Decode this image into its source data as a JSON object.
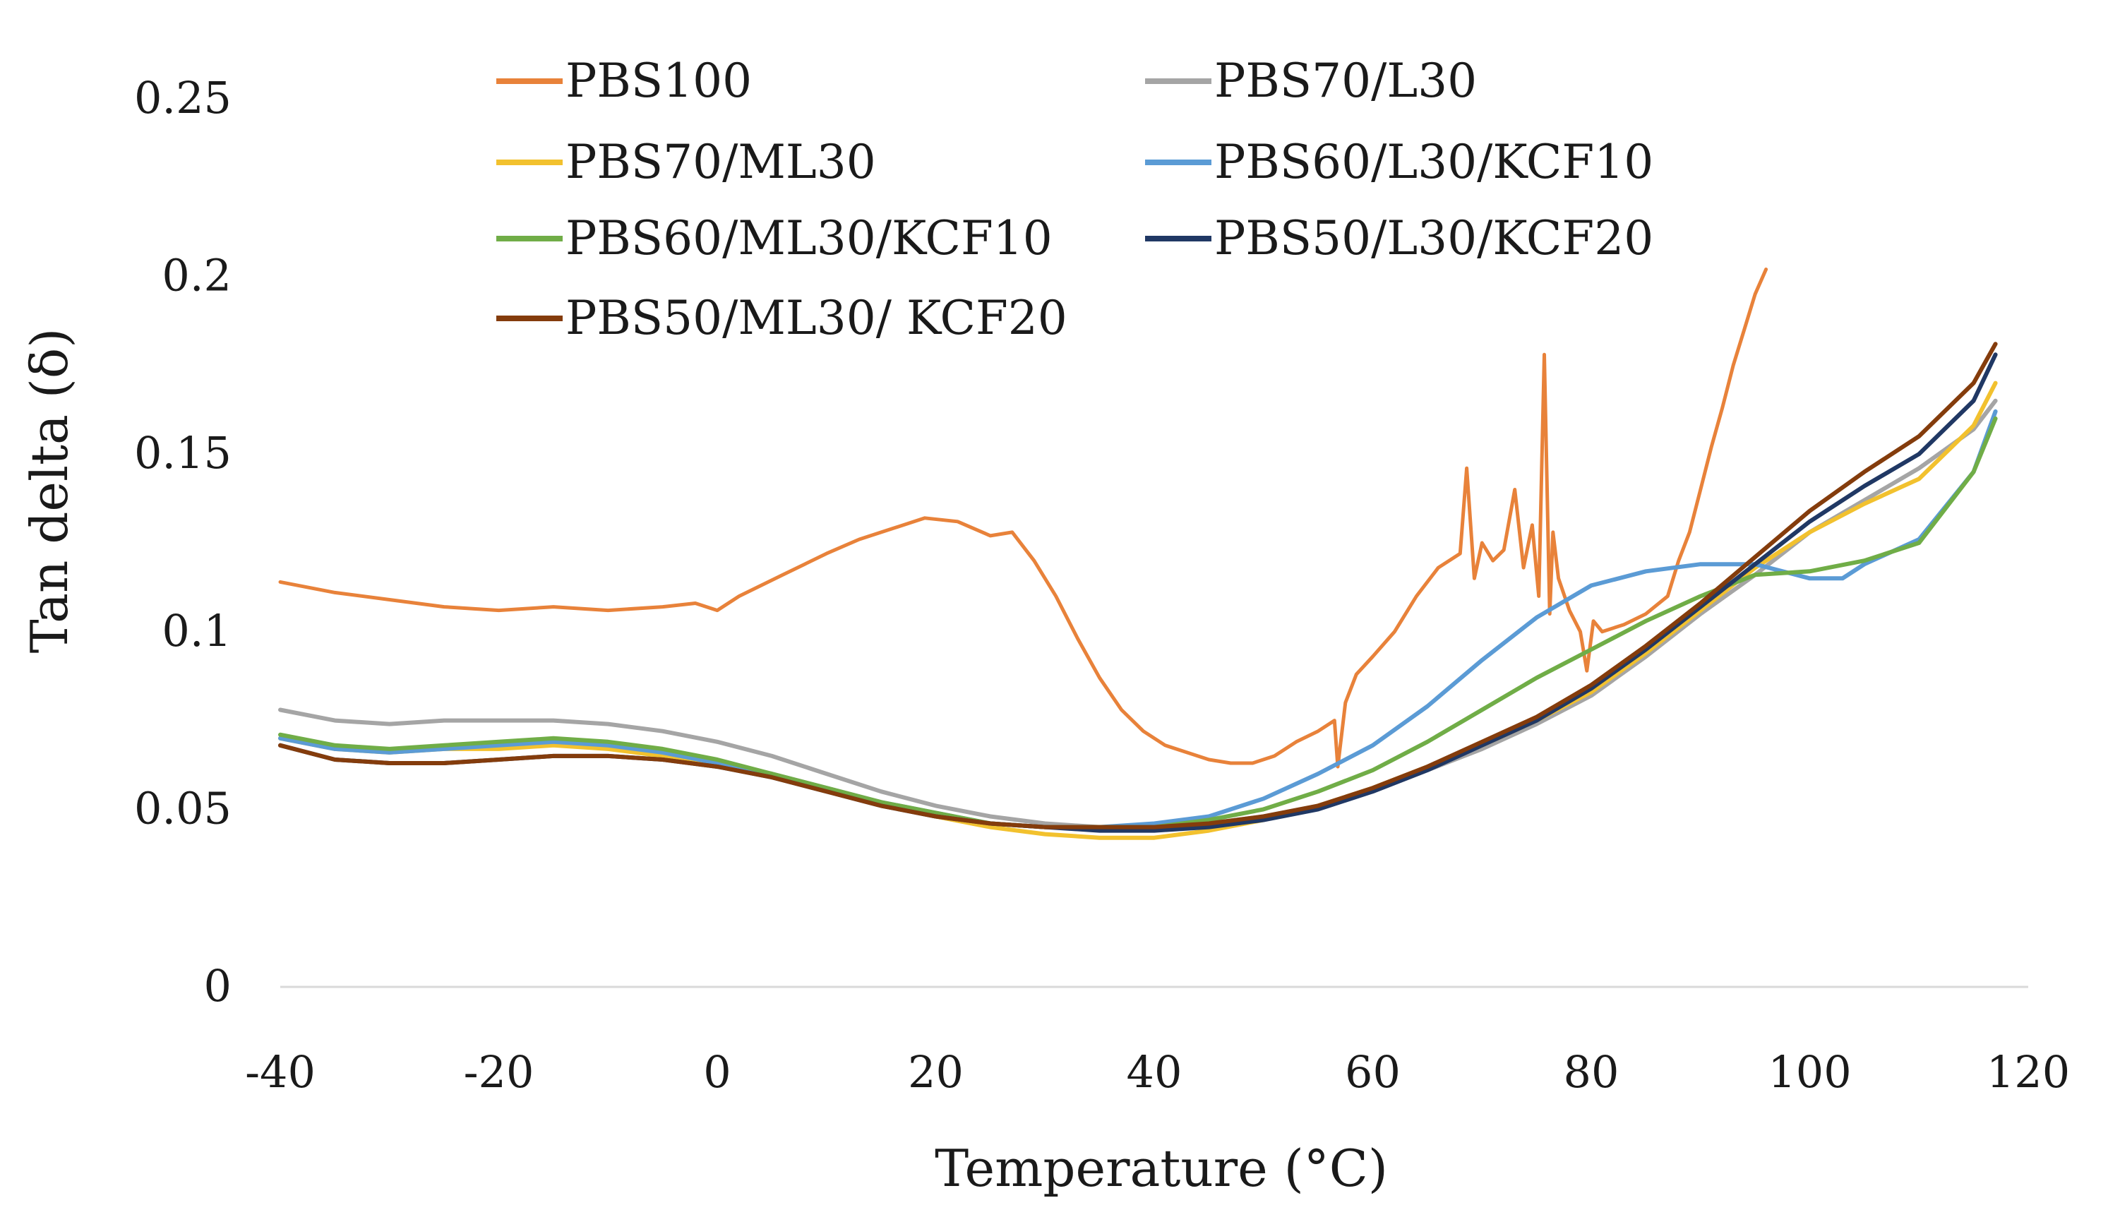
{
  "chart_data": {
    "type": "line",
    "title": "",
    "xlabel": "Temperature (°C)",
    "ylabel": "Tan delta (δ)",
    "xlim": [
      -40,
      120
    ],
    "ylim": [
      0,
      0.25
    ],
    "xticks": [
      "-40",
      "-20",
      "0",
      "20",
      "40",
      "60",
      "80",
      "100",
      "120"
    ],
    "yticks": [
      "0",
      "0.05",
      "0.1",
      "0.15",
      "0.2",
      "0.25"
    ],
    "grid": false,
    "legend_position": "top",
    "series": [
      {
        "name": "PBS100",
        "color": "#E8823A",
        "x": [
          -40,
          -35,
          -30,
          -25,
          -20,
          -15,
          -10,
          -5,
          -2,
          0,
          2,
          4,
          6,
          8,
          10,
          13,
          16,
          19,
          22,
          25,
          27,
          29,
          31,
          33,
          35,
          37,
          39,
          41,
          43,
          45,
          47,
          49,
          51,
          53,
          55,
          56.5,
          56.8,
          57.5,
          58.5,
          60,
          62,
          64,
          66,
          68,
          68.6,
          69.3,
          70,
          71,
          72,
          73,
          73.8,
          74.6,
          75.2,
          75.7,
          76.2,
          76.5,
          77,
          78,
          79,
          79.6,
          80.2,
          81,
          83,
          85,
          87,
          88,
          89,
          90,
          91,
          92,
          93,
          94,
          95,
          96
        ],
        "values": [
          0.114,
          0.111,
          0.109,
          0.107,
          0.106,
          0.107,
          0.106,
          0.107,
          0.108,
          0.106,
          0.11,
          0.113,
          0.116,
          0.119,
          0.122,
          0.126,
          0.129,
          0.132,
          0.131,
          0.127,
          0.128,
          0.12,
          0.11,
          0.098,
          0.087,
          0.078,
          0.072,
          0.068,
          0.066,
          0.064,
          0.063,
          0.063,
          0.065,
          0.069,
          0.072,
          0.075,
          0.062,
          0.08,
          0.088,
          0.093,
          0.1,
          0.11,
          0.118,
          0.122,
          0.146,
          0.115,
          0.125,
          0.12,
          0.123,
          0.14,
          0.118,
          0.13,
          0.11,
          0.178,
          0.105,
          0.128,
          0.115,
          0.106,
          0.1,
          0.089,
          0.103,
          0.1,
          0.102,
          0.105,
          0.11,
          0.12,
          0.128,
          0.14,
          0.152,
          0.163,
          0.175,
          0.185,
          0.195,
          0.202
        ]
      },
      {
        "name": "PBS70/L30",
        "color": "#A5A5A5",
        "x": [
          -40,
          -35,
          -30,
          -25,
          -20,
          -15,
          -10,
          -5,
          0,
          5,
          10,
          15,
          20,
          25,
          30,
          35,
          40,
          45,
          50,
          55,
          60,
          65,
          70,
          75,
          80,
          85,
          90,
          95,
          100,
          105,
          110,
          115,
          117
        ],
        "values": [
          0.078,
          0.075,
          0.074,
          0.075,
          0.075,
          0.075,
          0.074,
          0.072,
          0.069,
          0.065,
          0.06,
          0.055,
          0.051,
          0.048,
          0.046,
          0.045,
          0.045,
          0.046,
          0.048,
          0.051,
          0.055,
          0.061,
          0.067,
          0.074,
          0.082,
          0.093,
          0.105,
          0.116,
          0.128,
          0.137,
          0.146,
          0.157,
          0.165
        ]
      },
      {
        "name": "PBS70/ML30",
        "color": "#F2C12E",
        "x": [
          -40,
          -35,
          -30,
          -25,
          -20,
          -15,
          -10,
          -5,
          0,
          5,
          10,
          15,
          20,
          25,
          30,
          35,
          40,
          45,
          50,
          55,
          60,
          65,
          70,
          75,
          80,
          85,
          90,
          95,
          100,
          105,
          110,
          115,
          117
        ],
        "values": [
          0.07,
          0.067,
          0.066,
          0.067,
          0.067,
          0.068,
          0.067,
          0.065,
          0.063,
          0.06,
          0.056,
          0.052,
          0.048,
          0.045,
          0.043,
          0.042,
          0.042,
          0.044,
          0.047,
          0.051,
          0.056,
          0.062,
          0.068,
          0.075,
          0.083,
          0.094,
          0.106,
          0.118,
          0.128,
          0.136,
          0.143,
          0.158,
          0.17
        ]
      },
      {
        "name": "PBS60/L30/KCF10",
        "color": "#5B9BD5",
        "x": [
          -40,
          -35,
          -30,
          -25,
          -20,
          -15,
          -10,
          -5,
          0,
          5,
          10,
          15,
          20,
          25,
          30,
          35,
          40,
          45,
          50,
          55,
          60,
          65,
          70,
          75,
          80,
          85,
          90,
          95,
          100,
          103,
          105,
          110,
          115,
          117
        ],
        "values": [
          0.07,
          0.067,
          0.066,
          0.067,
          0.068,
          0.069,
          0.068,
          0.066,
          0.063,
          0.06,
          0.056,
          0.052,
          0.049,
          0.046,
          0.045,
          0.045,
          0.046,
          0.048,
          0.053,
          0.06,
          0.068,
          0.079,
          0.092,
          0.104,
          0.113,
          0.117,
          0.119,
          0.119,
          0.115,
          0.115,
          0.119,
          0.126,
          0.145,
          0.162
        ]
      },
      {
        "name": "PBS60/ML30/KCF10",
        "color": "#70AD47",
        "x": [
          -40,
          -35,
          -30,
          -25,
          -20,
          -15,
          -10,
          -5,
          0,
          5,
          10,
          15,
          20,
          25,
          30,
          35,
          40,
          45,
          50,
          55,
          60,
          65,
          70,
          75,
          80,
          85,
          90,
          95,
          100,
          105,
          110,
          115,
          117
        ],
        "values": [
          0.071,
          0.068,
          0.067,
          0.068,
          0.069,
          0.07,
          0.069,
          0.067,
          0.064,
          0.06,
          0.056,
          0.052,
          0.049,
          0.046,
          0.045,
          0.045,
          0.045,
          0.047,
          0.05,
          0.055,
          0.061,
          0.069,
          0.078,
          0.087,
          0.095,
          0.103,
          0.11,
          0.116,
          0.117,
          0.12,
          0.125,
          0.145,
          0.16
        ]
      },
      {
        "name": "PBS50/L30/KCF20",
        "color": "#203864",
        "x": [
          -40,
          -35,
          -30,
          -25,
          -20,
          -15,
          -10,
          -5,
          0,
          5,
          10,
          15,
          20,
          25,
          30,
          35,
          40,
          45,
          50,
          55,
          60,
          65,
          70,
          75,
          80,
          85,
          90,
          95,
          100,
          105,
          110,
          115,
          117
        ],
        "values": [
          0.068,
          0.064,
          0.063,
          0.063,
          0.064,
          0.065,
          0.065,
          0.064,
          0.062,
          0.059,
          0.055,
          0.051,
          0.048,
          0.046,
          0.045,
          0.044,
          0.044,
          0.045,
          0.047,
          0.05,
          0.055,
          0.061,
          0.068,
          0.075,
          0.084,
          0.095,
          0.107,
          0.119,
          0.131,
          0.141,
          0.15,
          0.165,
          0.178
        ]
      },
      {
        "name": "PBS50/ML30/ KCF20",
        "color": "#843C0C",
        "x": [
          -40,
          -35,
          -30,
          -25,
          -20,
          -15,
          -10,
          -5,
          0,
          5,
          10,
          15,
          20,
          25,
          30,
          35,
          40,
          45,
          50,
          55,
          60,
          65,
          70,
          75,
          80,
          85,
          90,
          95,
          100,
          105,
          110,
          115,
          117
        ],
        "values": [
          0.068,
          0.064,
          0.063,
          0.063,
          0.064,
          0.065,
          0.065,
          0.064,
          0.062,
          0.059,
          0.055,
          0.051,
          0.048,
          0.046,
          0.045,
          0.045,
          0.045,
          0.046,
          0.048,
          0.051,
          0.056,
          0.062,
          0.069,
          0.076,
          0.085,
          0.096,
          0.108,
          0.121,
          0.134,
          0.145,
          0.155,
          0.17,
          0.181
        ]
      }
    ]
  }
}
